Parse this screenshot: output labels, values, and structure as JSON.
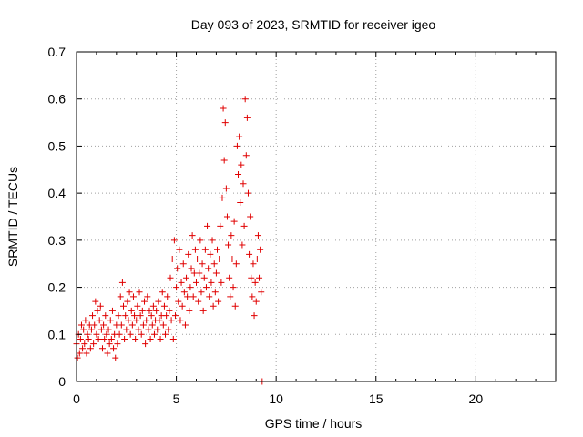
{
  "chart_data": {
    "type": "scatter",
    "title": "Day 093 of 2023, SRMTID for receiver igeo",
    "xlabel": "GPS time / hours",
    "ylabel": "SRMTID / TECUs",
    "xlim": [
      0,
      24
    ],
    "ylim": [
      0,
      0.7
    ],
    "xticks": [
      0,
      5,
      10,
      15,
      20
    ],
    "yticks": [
      0,
      0.1,
      0.2,
      0.3,
      0.4,
      0.5,
      0.6,
      0.7
    ],
    "grid": true,
    "marker": "plus",
    "color": "#e00000",
    "series": [
      {
        "name": "SRMTID",
        "points": [
          [
            0.0,
            0.08
          ],
          [
            0.05,
            0.05
          ],
          [
            0.1,
            0.1
          ],
          [
            0.15,
            0.06
          ],
          [
            0.2,
            0.09
          ],
          [
            0.25,
            0.12
          ],
          [
            0.3,
            0.07
          ],
          [
            0.35,
            0.11
          ],
          [
            0.4,
            0.08
          ],
          [
            0.45,
            0.13
          ],
          [
            0.5,
            0.06
          ],
          [
            0.55,
            0.1
          ],
          [
            0.6,
            0.09
          ],
          [
            0.65,
            0.12
          ],
          [
            0.7,
            0.07
          ],
          [
            0.75,
            0.11
          ],
          [
            0.8,
            0.14
          ],
          [
            0.85,
            0.08
          ],
          [
            0.9,
            0.12
          ],
          [
            0.95,
            0.17
          ],
          [
            1.0,
            0.1
          ],
          [
            1.05,
            0.15
          ],
          [
            1.1,
            0.09
          ],
          [
            1.15,
            0.13
          ],
          [
            1.2,
            0.16
          ],
          [
            1.25,
            0.11
          ],
          [
            1.3,
            0.07
          ],
          [
            1.35,
            0.12
          ],
          [
            1.4,
            0.09
          ],
          [
            1.45,
            0.14
          ],
          [
            1.5,
            0.1
          ],
          [
            1.55,
            0.06
          ],
          [
            1.6,
            0.11
          ],
          [
            1.65,
            0.08
          ],
          [
            1.7,
            0.13
          ],
          [
            1.75,
            0.09
          ],
          [
            1.8,
            0.15
          ],
          [
            1.85,
            0.07
          ],
          [
            1.9,
            0.1
          ],
          [
            1.95,
            0.05
          ],
          [
            2.0,
            0.12
          ],
          [
            2.05,
            0.08
          ],
          [
            2.1,
            0.14
          ],
          [
            2.15,
            0.1
          ],
          [
            2.2,
            0.18
          ],
          [
            2.25,
            0.12
          ],
          [
            2.3,
            0.21
          ],
          [
            2.35,
            0.16
          ],
          [
            2.4,
            0.09
          ],
          [
            2.45,
            0.14
          ],
          [
            2.5,
            0.11
          ],
          [
            2.55,
            0.17
          ],
          [
            2.6,
            0.13
          ],
          [
            2.65,
            0.19
          ],
          [
            2.7,
            0.1
          ],
          [
            2.75,
            0.15
          ],
          [
            2.8,
            0.12
          ],
          [
            2.85,
            0.18
          ],
          [
            2.9,
            0.14
          ],
          [
            2.95,
            0.09
          ],
          [
            3.0,
            0.13
          ],
          [
            3.05,
            0.16
          ],
          [
            3.1,
            0.11
          ],
          [
            3.15,
            0.19
          ],
          [
            3.2,
            0.14
          ],
          [
            3.25,
            0.1
          ],
          [
            3.3,
            0.15
          ],
          [
            3.35,
            0.12
          ],
          [
            3.4,
            0.17
          ],
          [
            3.45,
            0.08
          ],
          [
            3.5,
            0.13
          ],
          [
            3.55,
            0.18
          ],
          [
            3.6,
            0.11
          ],
          [
            3.65,
            0.15
          ],
          [
            3.7,
            0.09
          ],
          [
            3.75,
            0.14
          ],
          [
            3.8,
            0.12
          ],
          [
            3.85,
            0.16
          ],
          [
            3.9,
            0.1
          ],
          [
            3.95,
            0.13
          ],
          [
            4.0,
            0.15
          ],
          [
            4.05,
            0.11
          ],
          [
            4.1,
            0.17
          ],
          [
            4.15,
            0.13
          ],
          [
            4.2,
            0.09
          ],
          [
            4.25,
            0.14
          ],
          [
            4.3,
            0.19
          ],
          [
            4.35,
            0.12
          ],
          [
            4.4,
            0.16
          ],
          [
            4.45,
            0.1
          ],
          [
            4.5,
            0.14
          ],
          [
            4.55,
            0.18
          ],
          [
            4.6,
            0.11
          ],
          [
            4.65,
            0.15
          ],
          [
            4.7,
            0.22
          ],
          [
            4.75,
            0.13
          ],
          [
            4.8,
            0.26
          ],
          [
            4.85,
            0.09
          ],
          [
            4.9,
            0.3
          ],
          [
            4.95,
            0.14
          ],
          [
            5.0,
            0.2
          ],
          [
            5.05,
            0.24
          ],
          [
            5.1,
            0.17
          ],
          [
            5.15,
            0.28
          ],
          [
            5.2,
            0.13
          ],
          [
            5.25,
            0.21
          ],
          [
            5.3,
            0.16
          ],
          [
            5.35,
            0.25
          ],
          [
            5.4,
            0.19
          ],
          [
            5.45,
            0.12
          ],
          [
            5.5,
            0.22
          ],
          [
            5.55,
            0.18
          ],
          [
            5.6,
            0.27
          ],
          [
            5.65,
            0.15
          ],
          [
            5.7,
            0.2
          ],
          [
            5.75,
            0.24
          ],
          [
            5.8,
            0.31
          ],
          [
            5.85,
            0.18
          ],
          [
            5.9,
            0.23
          ],
          [
            5.95,
            0.28
          ],
          [
            6.0,
            0.21
          ],
          [
            6.05,
            0.26
          ],
          [
            6.1,
            0.17
          ],
          [
            6.15,
            0.23
          ],
          [
            6.2,
            0.3
          ],
          [
            6.25,
            0.19
          ],
          [
            6.3,
            0.25
          ],
          [
            6.35,
            0.15
          ],
          [
            6.4,
            0.22
          ],
          [
            6.45,
            0.28
          ],
          [
            6.5,
            0.2
          ],
          [
            6.55,
            0.33
          ],
          [
            6.6,
            0.24
          ],
          [
            6.65,
            0.18
          ],
          [
            6.7,
            0.27
          ],
          [
            6.75,
            0.21
          ],
          [
            6.8,
            0.3
          ],
          [
            6.85,
            0.16
          ],
          [
            6.9,
            0.25
          ],
          [
            6.95,
            0.19
          ],
          [
            7.0,
            0.23
          ],
          [
            7.05,
            0.28
          ],
          [
            7.1,
            0.17
          ],
          [
            7.15,
            0.26
          ],
          [
            7.2,
            0.33
          ],
          [
            7.25,
            0.21
          ],
          [
            7.3,
            0.39
          ],
          [
            7.35,
            0.58
          ],
          [
            7.4,
            0.47
          ],
          [
            7.45,
            0.55
          ],
          [
            7.5,
            0.41
          ],
          [
            7.55,
            0.35
          ],
          [
            7.6,
            0.29
          ],
          [
            7.65,
            0.22
          ],
          [
            7.7,
            0.18
          ],
          [
            7.75,
            0.31
          ],
          [
            7.8,
            0.26
          ],
          [
            7.85,
            0.2
          ],
          [
            7.9,
            0.34
          ],
          [
            7.95,
            0.16
          ],
          [
            8.0,
            0.25
          ],
          [
            8.05,
            0.5
          ],
          [
            8.1,
            0.44
          ],
          [
            8.15,
            0.52
          ],
          [
            8.2,
            0.38
          ],
          [
            8.25,
            0.46
          ],
          [
            8.3,
            0.29
          ],
          [
            8.35,
            0.42
          ],
          [
            8.4,
            0.33
          ],
          [
            8.45,
            0.6
          ],
          [
            8.5,
            0.48
          ],
          [
            8.55,
            0.56
          ],
          [
            8.6,
            0.4
          ],
          [
            8.65,
            0.27
          ],
          [
            8.7,
            0.35
          ],
          [
            8.75,
            0.22
          ],
          [
            8.8,
            0.18
          ],
          [
            8.85,
            0.25
          ],
          [
            8.9,
            0.14
          ],
          [
            8.95,
            0.21
          ],
          [
            9.0,
            0.17
          ],
          [
            9.05,
            0.26
          ],
          [
            9.1,
            0.31
          ],
          [
            9.15,
            0.22
          ],
          [
            9.2,
            0.28
          ],
          [
            9.25,
            0.19
          ],
          [
            9.3,
            0.0
          ]
        ]
      }
    ]
  }
}
